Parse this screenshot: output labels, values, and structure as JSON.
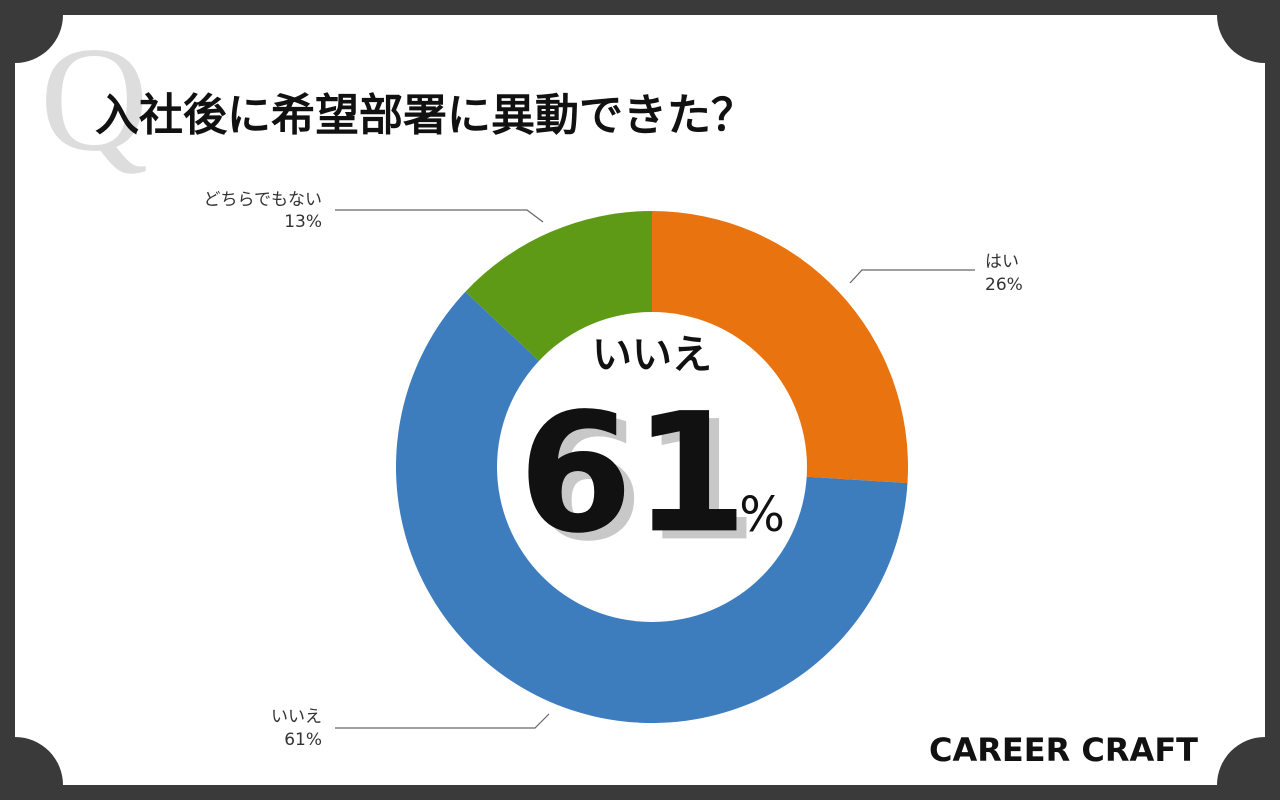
{
  "chart_data": {
    "type": "donut",
    "title": "入社後に希望部署に異動できた？",
    "watermark": "Q",
    "categories": [
      "はい",
      "いいえ",
      "どちらでもない"
    ],
    "values": [
      26,
      61,
      13
    ],
    "value_labels": [
      "26%",
      "61%",
      "13%"
    ],
    "colors": [
      "#e8730f",
      "#3d7dbe",
      "#5e9a15"
    ],
    "center_unit": "%",
    "brand": "CAREER CRAFT"
  }
}
